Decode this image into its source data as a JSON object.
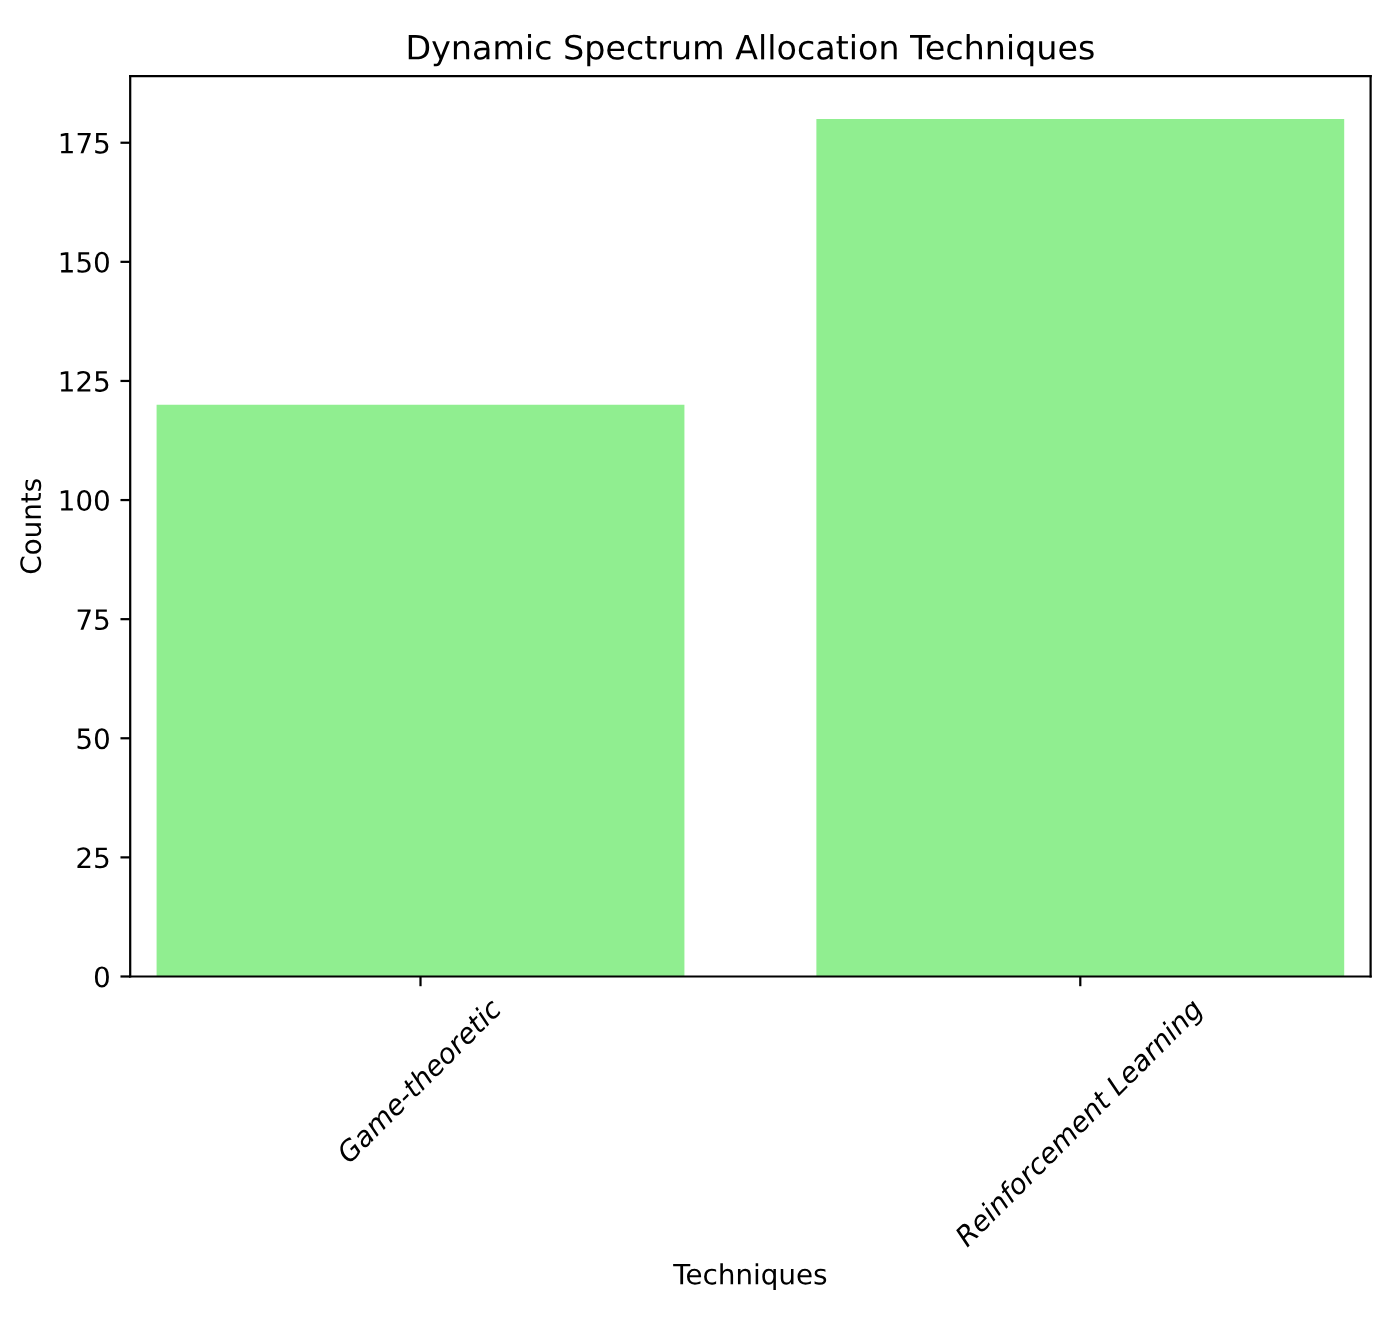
{
  "chart_data": {
    "type": "bar",
    "title": "Dynamic Spectrum Allocation Techniques",
    "xlabel": "Techniques",
    "ylabel": "Counts",
    "categories": [
      "Game-theoretic",
      "Reinforcement Learning"
    ],
    "values": [
      120,
      180
    ],
    "color": "#90ee90",
    "ylim": [
      0,
      189
    ],
    "yticks": [
      0,
      25,
      50,
      75,
      100,
      125,
      150,
      175
    ],
    "grid": false
  }
}
